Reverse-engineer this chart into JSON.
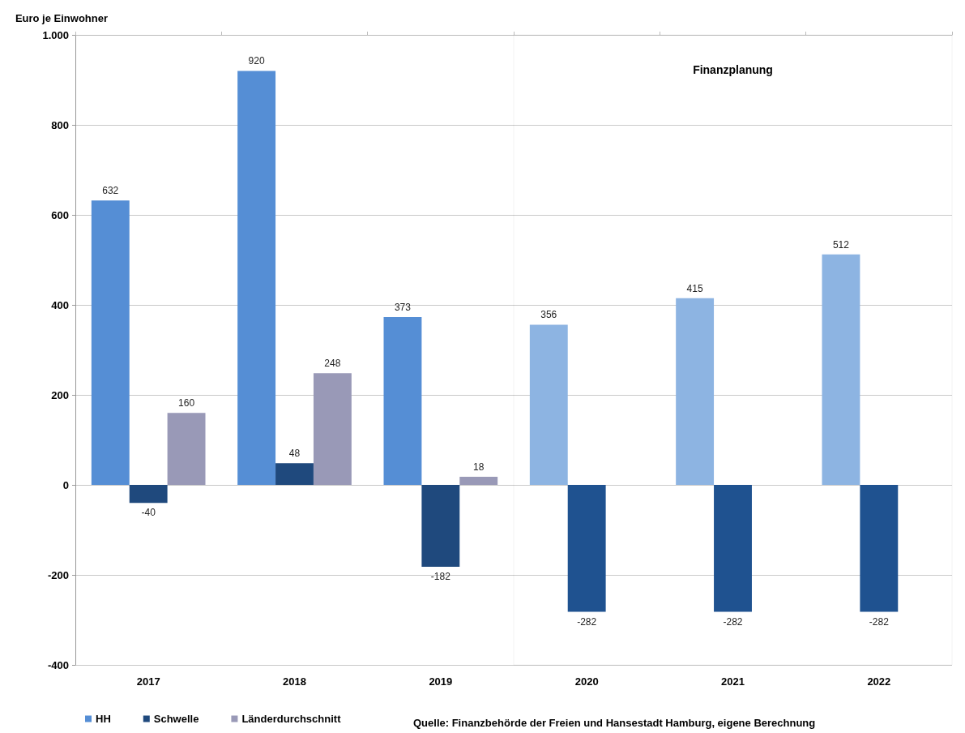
{
  "chart_data": {
    "type": "bar",
    "ylabel": "Euro je Einwohner",
    "categories": [
      "2017",
      "2018",
      "2019",
      "2020",
      "2021",
      "2022"
    ],
    "series": [
      {
        "name": "HH",
        "color": "#558ed5",
        "colors": [
          "#558ed5",
          "#558ed5",
          "#558ed5",
          "#8db4e2",
          "#8db4e2",
          "#8db4e2"
        ],
        "values": [
          632,
          920,
          373,
          356,
          415,
          512
        ]
      },
      {
        "name": "Schwelle",
        "color": "#1f497d",
        "colors": [
          "#1f497d",
          "#1f497d",
          "#1f497d",
          "#1f5290",
          "#1f5290",
          "#1f5290"
        ],
        "values": [
          -40,
          48,
          -182,
          -282,
          -282,
          -282
        ]
      },
      {
        "name": "Länderdurchschnitt",
        "color": "#9999b7",
        "values": [
          160,
          248,
          18,
          null,
          null,
          null
        ]
      }
    ],
    "ylim": [
      -400,
      1000
    ],
    "yticks": [
      -400,
      -200,
      0,
      200,
      400,
      600,
      800,
      {
        "value": 1000,
        "label": "1.000"
      }
    ],
    "grid": "y",
    "legend": "bottom left",
    "data_labels": true,
    "bands": [
      {
        "axis": "x",
        "from": "2020",
        "to": "2022",
        "label": "Finanzplanung",
        "color": "#ffffff"
      }
    ],
    "annotations": [
      "Quelle: Finanzbehörde der Freien und Hansestadt Hamburg, eigene Berechnung"
    ]
  }
}
